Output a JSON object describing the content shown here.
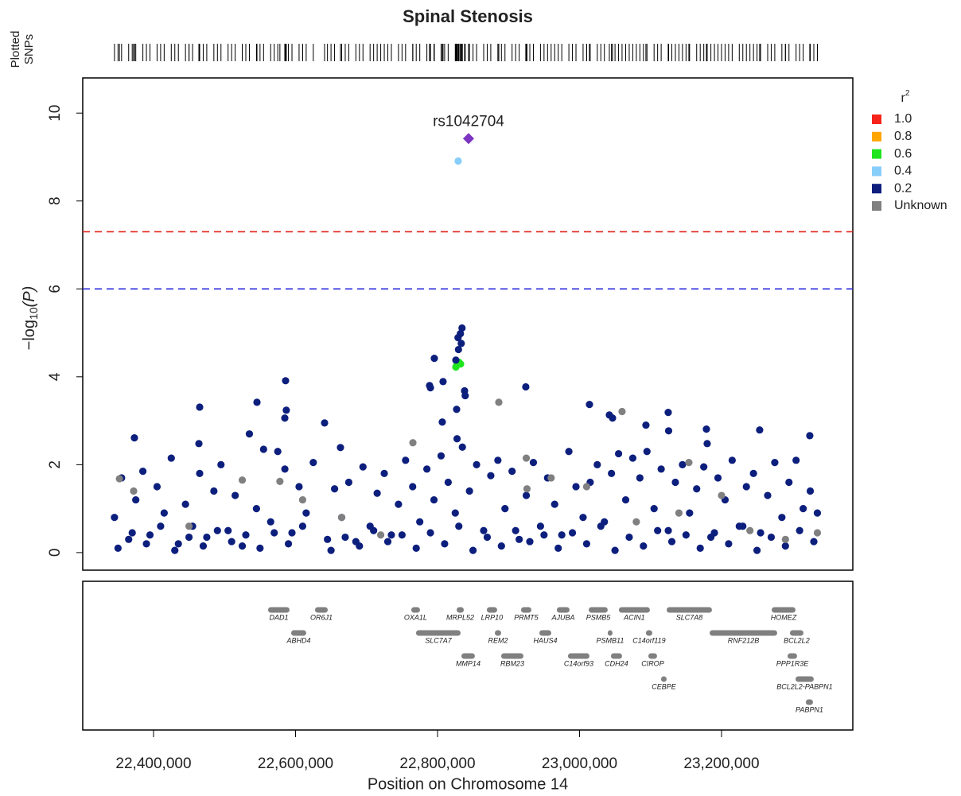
{
  "chart_data": {
    "type": "scatter",
    "title": "Spinal Stenosis",
    "rug_label": [
      "Plotted",
      "SNPs"
    ],
    "ylabel": {
      "prefix": "−log",
      "sub": "10",
      "suffix": "(P)"
    },
    "xlabel": "Position on Chromosome 14",
    "legend_title": {
      "text": "r",
      "sup": "2"
    },
    "xlim": [
      22300300,
      23384900
    ],
    "ylim": [
      -0.4,
      10.8
    ],
    "xticks": [
      {
        "value": 22400000,
        "label": "22,400,000"
      },
      {
        "value": 22600000,
        "label": "22,600,000"
      },
      {
        "value": 22800000,
        "label": "22,800,000"
      },
      {
        "value": 23000000,
        "label": "23,000,000"
      },
      {
        "value": 23200000,
        "label": "23,200,000"
      }
    ],
    "yticks": [
      0,
      2,
      4,
      6,
      8,
      10
    ],
    "reference_lines": [
      {
        "value": 7.3,
        "color": "#e3231b"
      },
      {
        "value": 6,
        "color": "#2b2be0"
      }
    ],
    "series": [
      {
        "name": "1.0",
        "color": "#f5231a",
        "x": [],
        "values": []
      },
      {
        "name": "0.8",
        "color": "#ffa500",
        "x": [],
        "values": []
      },
      {
        "name": "0.6",
        "color": "#1ee51e",
        "x": [
          22826900,
          22830300,
          22832500,
          22825800
        ],
        "values": [
          4.26,
          4.33,
          4.29,
          4.22
        ]
      },
      {
        "name": "0.4",
        "color": "#87cefa",
        "x": [
          22829100
        ],
        "values": [
          8.91
        ]
      },
      {
        "name": "0.2",
        "color": "#0d1f7d",
        "x": [
          22345000,
          22355000,
          22365000,
          22375000,
          22385000,
          22395000,
          22405000,
          22415000,
          22425000,
          22435000,
          22445000,
          22455000,
          22465000,
          22475000,
          22485000,
          22495000,
          22505000,
          22515000,
          22525000,
          22535000,
          22545000,
          22555000,
          22565000,
          22575000,
          22585000,
          22595000,
          22605000,
          22615000,
          22625000,
          22645000,
          22655000,
          22665000,
          22675000,
          22685000,
          22695000,
          22705000,
          22715000,
          22725000,
          22735000,
          22745000,
          22755000,
          22765000,
          22775000,
          22785000,
          22795000,
          22805000,
          22815000,
          22825000,
          22835000,
          22845000,
          22855000,
          22865000,
          22875000,
          22885000,
          22895000,
          22905000,
          22915000,
          22925000,
          22935000,
          22945000,
          22955000,
          22965000,
          22975000,
          22985000,
          22995000,
          23005000,
          23015000,
          23025000,
          23035000,
          23045000,
          23055000,
          23065000,
          23075000,
          23085000,
          23095000,
          23105000,
          23115000,
          23125000,
          23135000,
          23145000,
          23155000,
          23165000,
          23175000,
          23185000,
          23195000,
          23205000,
          23215000,
          23225000,
          23235000,
          23245000,
          23255000,
          23265000,
          23275000,
          23285000,
          23295000,
          23305000,
          23315000,
          23325000,
          23335000,
          22350000,
          22370000,
          22390000,
          22410000,
          22430000,
          22450000,
          22470000,
          22490000,
          22510000,
          22530000,
          22550000,
          22570000,
          22590000,
          22610000,
          22650000,
          22670000,
          22690000,
          22710000,
          22730000,
          22750000,
          22770000,
          22790000,
          22810000,
          22830000,
          22850000,
          22870000,
          22890000,
          22910000,
          22930000,
          22950000,
          22970000,
          22990000,
          23010000,
          23030000,
          23050000,
          23070000,
          23090000,
          23110000,
          23130000,
          23150000,
          23170000,
          23190000,
          23210000,
          23230000,
          23250000,
          23270000,
          23290000,
          23310000,
          23330000,
          22373100,
          22465000,
          22463900,
          22545700,
          22586000,
          22587000,
          22584900,
          22640900,
          22663300,
          22795500,
          22788800,
          22790000,
          22807800,
          22806700,
          22825800,
          22828900,
          22832200,
          22834500,
          22833400,
          22829500,
          22838100,
          22839000,
          22826900,
          22827500,
          22924300,
          23014000,
          23042000,
          23046500,
          23093500,
          23124900,
          23125500,
          23178700,
          23179800,
          23253700,
          23324300
        ],
        "values": [
          0.8,
          1.7,
          0.3,
          1.2,
          1.85,
          0.4,
          1.5,
          0.9,
          2.15,
          0.2,
          1.1,
          0.6,
          1.8,
          0.35,
          1.4,
          2.0,
          0.5,
          1.3,
          0.15,
          2.7,
          1.0,
          2.35,
          0.7,
          2.3,
          1.9,
          0.45,
          1.5,
          0.9,
          2.05,
          0.3,
          1.45,
          0.8,
          1.6,
          0.25,
          1.95,
          0.6,
          1.35,
          1.8,
          0.4,
          1.1,
          2.1,
          1.5,
          0.7,
          1.9,
          1.2,
          2.2,
          1.6,
          0.9,
          2.4,
          1.4,
          2.0,
          0.5,
          1.75,
          2.1,
          1.0,
          1.85,
          0.3,
          1.3,
          2.05,
          0.6,
          1.7,
          1.1,
          0.4,
          2.3,
          1.5,
          0.8,
          1.6,
          2.0,
          0.7,
          1.8,
          2.25,
          1.2,
          2.15,
          1.7,
          2.3,
          1.0,
          1.9,
          0.5,
          1.6,
          2.0,
          0.9,
          1.45,
          1.95,
          0.35,
          1.7,
          1.2,
          2.1,
          0.6,
          1.5,
          1.8,
          0.45,
          1.3,
          2.05,
          0.8,
          1.6,
          2.1,
          1.0,
          1.4,
          0.9,
          0.1,
          0.45,
          0.2,
          0.6,
          0.05,
          0.35,
          0.15,
          0.5,
          0.25,
          0.4,
          0.1,
          0.45,
          0.2,
          0.6,
          0.05,
          0.35,
          0.15,
          0.5,
          0.25,
          0.4,
          0.1,
          0.45,
          0.2,
          0.6,
          0.05,
          0.35,
          0.15,
          0.5,
          0.25,
          0.4,
          0.1,
          0.45,
          0.2,
          0.6,
          0.05,
          0.35,
          0.15,
          0.5,
          0.25,
          0.4,
          0.1,
          0.45,
          0.2,
          0.6,
          0.05,
          0.35,
          0.15,
          0.5,
          0.25,
          2.61,
          3.31,
          2.48,
          3.42,
          3.91,
          3.24,
          3.06,
          2.95,
          2.39,
          4.42,
          3.8,
          3.75,
          3.89,
          2.97,
          4.38,
          4.89,
          4.98,
          5.11,
          4.76,
          4.62,
          3.68,
          3.57,
          3.26,
          2.59,
          3.77,
          3.37,
          3.13,
          3.06,
          2.9,
          3.19,
          2.77,
          2.81,
          2.48,
          2.79,
          2.66
        ]
      },
      {
        "name": "Unknown",
        "color": "#808080",
        "x": [
          22886300,
          23059900,
          22765300,
          23154000,
          22352000,
          22372000,
          22578000,
          22525000,
          22665000,
          22720000,
          22925000,
          22926000,
          22960000,
          23010000,
          23080000,
          23200000,
          23240000,
          23290000,
          23335000,
          22450000,
          22610000,
          23140000
        ],
        "values": [
          3.42,
          3.21,
          2.5,
          2.05,
          1.68,
          1.4,
          1.62,
          1.65,
          0.8,
          0.4,
          2.15,
          1.45,
          1.7,
          1.5,
          0.7,
          1.3,
          0.5,
          0.3,
          0.45,
          0.6,
          1.2,
          0.9
        ]
      }
    ],
    "lead_snp": {
      "name": "rs1042704",
      "x": 22843700,
      "value": 9.42,
      "color": "#7b35c2"
    },
    "genes": [
      {
        "name": "DAD1",
        "start": 22561300,
        "end": 22591600
      },
      {
        "name": "MRPL52",
        "start": 22826900,
        "end": 22837000
      },
      {
        "name": "PRMT5",
        "start": 22917600,
        "end": 22932200
      },
      {
        "name": "PSMB11",
        "start": 23039700,
        "end": 23046500
      },
      {
        "name": "CEBPE",
        "start": 23114800,
        "end": 23122700
      },
      {
        "name": "BCL2L2",
        "start": 23296300,
        "end": 23315400
      },
      {
        "name": "OXA1L",
        "start": 22763000,
        "end": 22775300
      },
      {
        "name": "REM2",
        "start": 22880700,
        "end": 22889600
      },
      {
        "name": "C14orf93",
        "start": 22983700,
        "end": 23014000
      },
      {
        "name": "C14orf119",
        "start": 23093500,
        "end": 23102500
      },
      {
        "name": "HOMEZ",
        "start": 23270600,
        "end": 23304200
      },
      {
        "name": "OR6J1",
        "start": 22627400,
        "end": 22645400
      },
      {
        "name": "LRP10",
        "start": 22869400,
        "end": 22884000
      },
      {
        "name": "AJUBA",
        "start": 22968000,
        "end": 22986000
      },
      {
        "name": "ACIN1",
        "start": 23055400,
        "end": 23099100
      },
      {
        "name": "RNF212B",
        "start": 23183200,
        "end": 23278400
      },
      {
        "name": "PABPN1",
        "start": 23318700,
        "end": 23328800
      },
      {
        "name": "ABHD4",
        "start": 22593800,
        "end": 22615100
      },
      {
        "name": "MMP14",
        "start": 22833600,
        "end": 22852600
      },
      {
        "name": "HAUS4",
        "start": 22943400,
        "end": 22960200
      },
      {
        "name": "CDH24",
        "start": 23044200,
        "end": 23059900
      },
      {
        "name": "SLC7A8",
        "start": 23122700,
        "end": 23186500
      },
      {
        "name": "BCL2L2-PABPN1",
        "start": 23304200,
        "end": 23329900
      },
      {
        "name": "SLC7A7",
        "start": 22769700,
        "end": 22832500
      },
      {
        "name": "RBM23",
        "start": 22889600,
        "end": 22921000
      },
      {
        "name": "PSMB5",
        "start": 23012900,
        "end": 23039700
      },
      {
        "name": "CIROP",
        "start": 23096900,
        "end": 23109200
      },
      {
        "name": "PPP1R3E",
        "start": 23293000,
        "end": 23306400
      }
    ]
  }
}
